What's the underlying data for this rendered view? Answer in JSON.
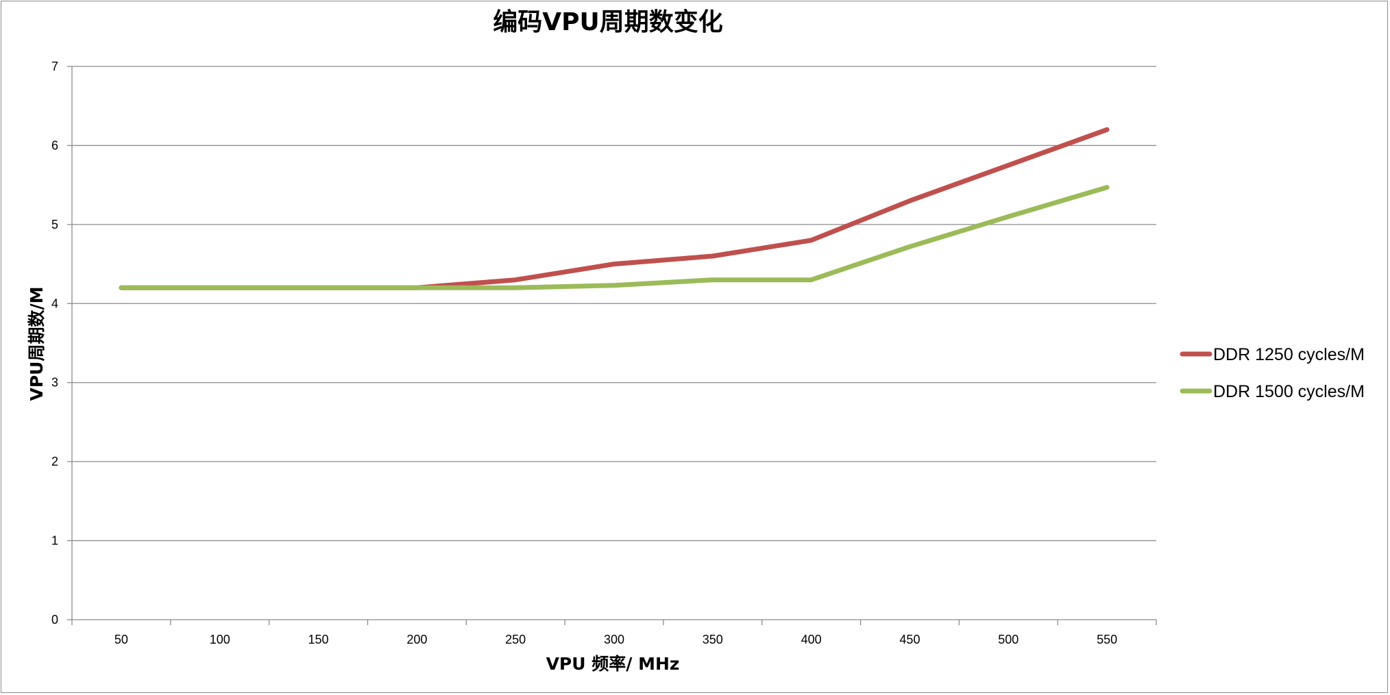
{
  "chart_data": {
    "type": "line",
    "title": "编码VPU周期数变化",
    "xlabel": "VPU  频率/ MHz",
    "ylabel": "VPU周期数/M",
    "categories": [
      "50",
      "100",
      "150",
      "200",
      "250",
      "300",
      "350",
      "400",
      "450",
      "500",
      "550"
    ],
    "ylim": [
      0,
      7
    ],
    "yticks": [
      "0",
      "1",
      "2",
      "3",
      "4",
      "5",
      "6",
      "7"
    ],
    "grid": true,
    "legend_position": "right",
    "series": [
      {
        "name": "DDR 1250 cycles/M",
        "color": "#c0504d",
        "values": [
          4.2,
          4.2,
          4.2,
          4.2,
          4.3,
          4.5,
          4.6,
          4.8,
          5.3,
          5.75,
          6.2
        ]
      },
      {
        "name": "DDR 1500 cycles/M",
        "color": "#9bbb59",
        "values": [
          4.2,
          4.2,
          4.2,
          4.2,
          4.2,
          4.23,
          4.3,
          4.3,
          4.72,
          5.1,
          5.47
        ]
      }
    ]
  }
}
